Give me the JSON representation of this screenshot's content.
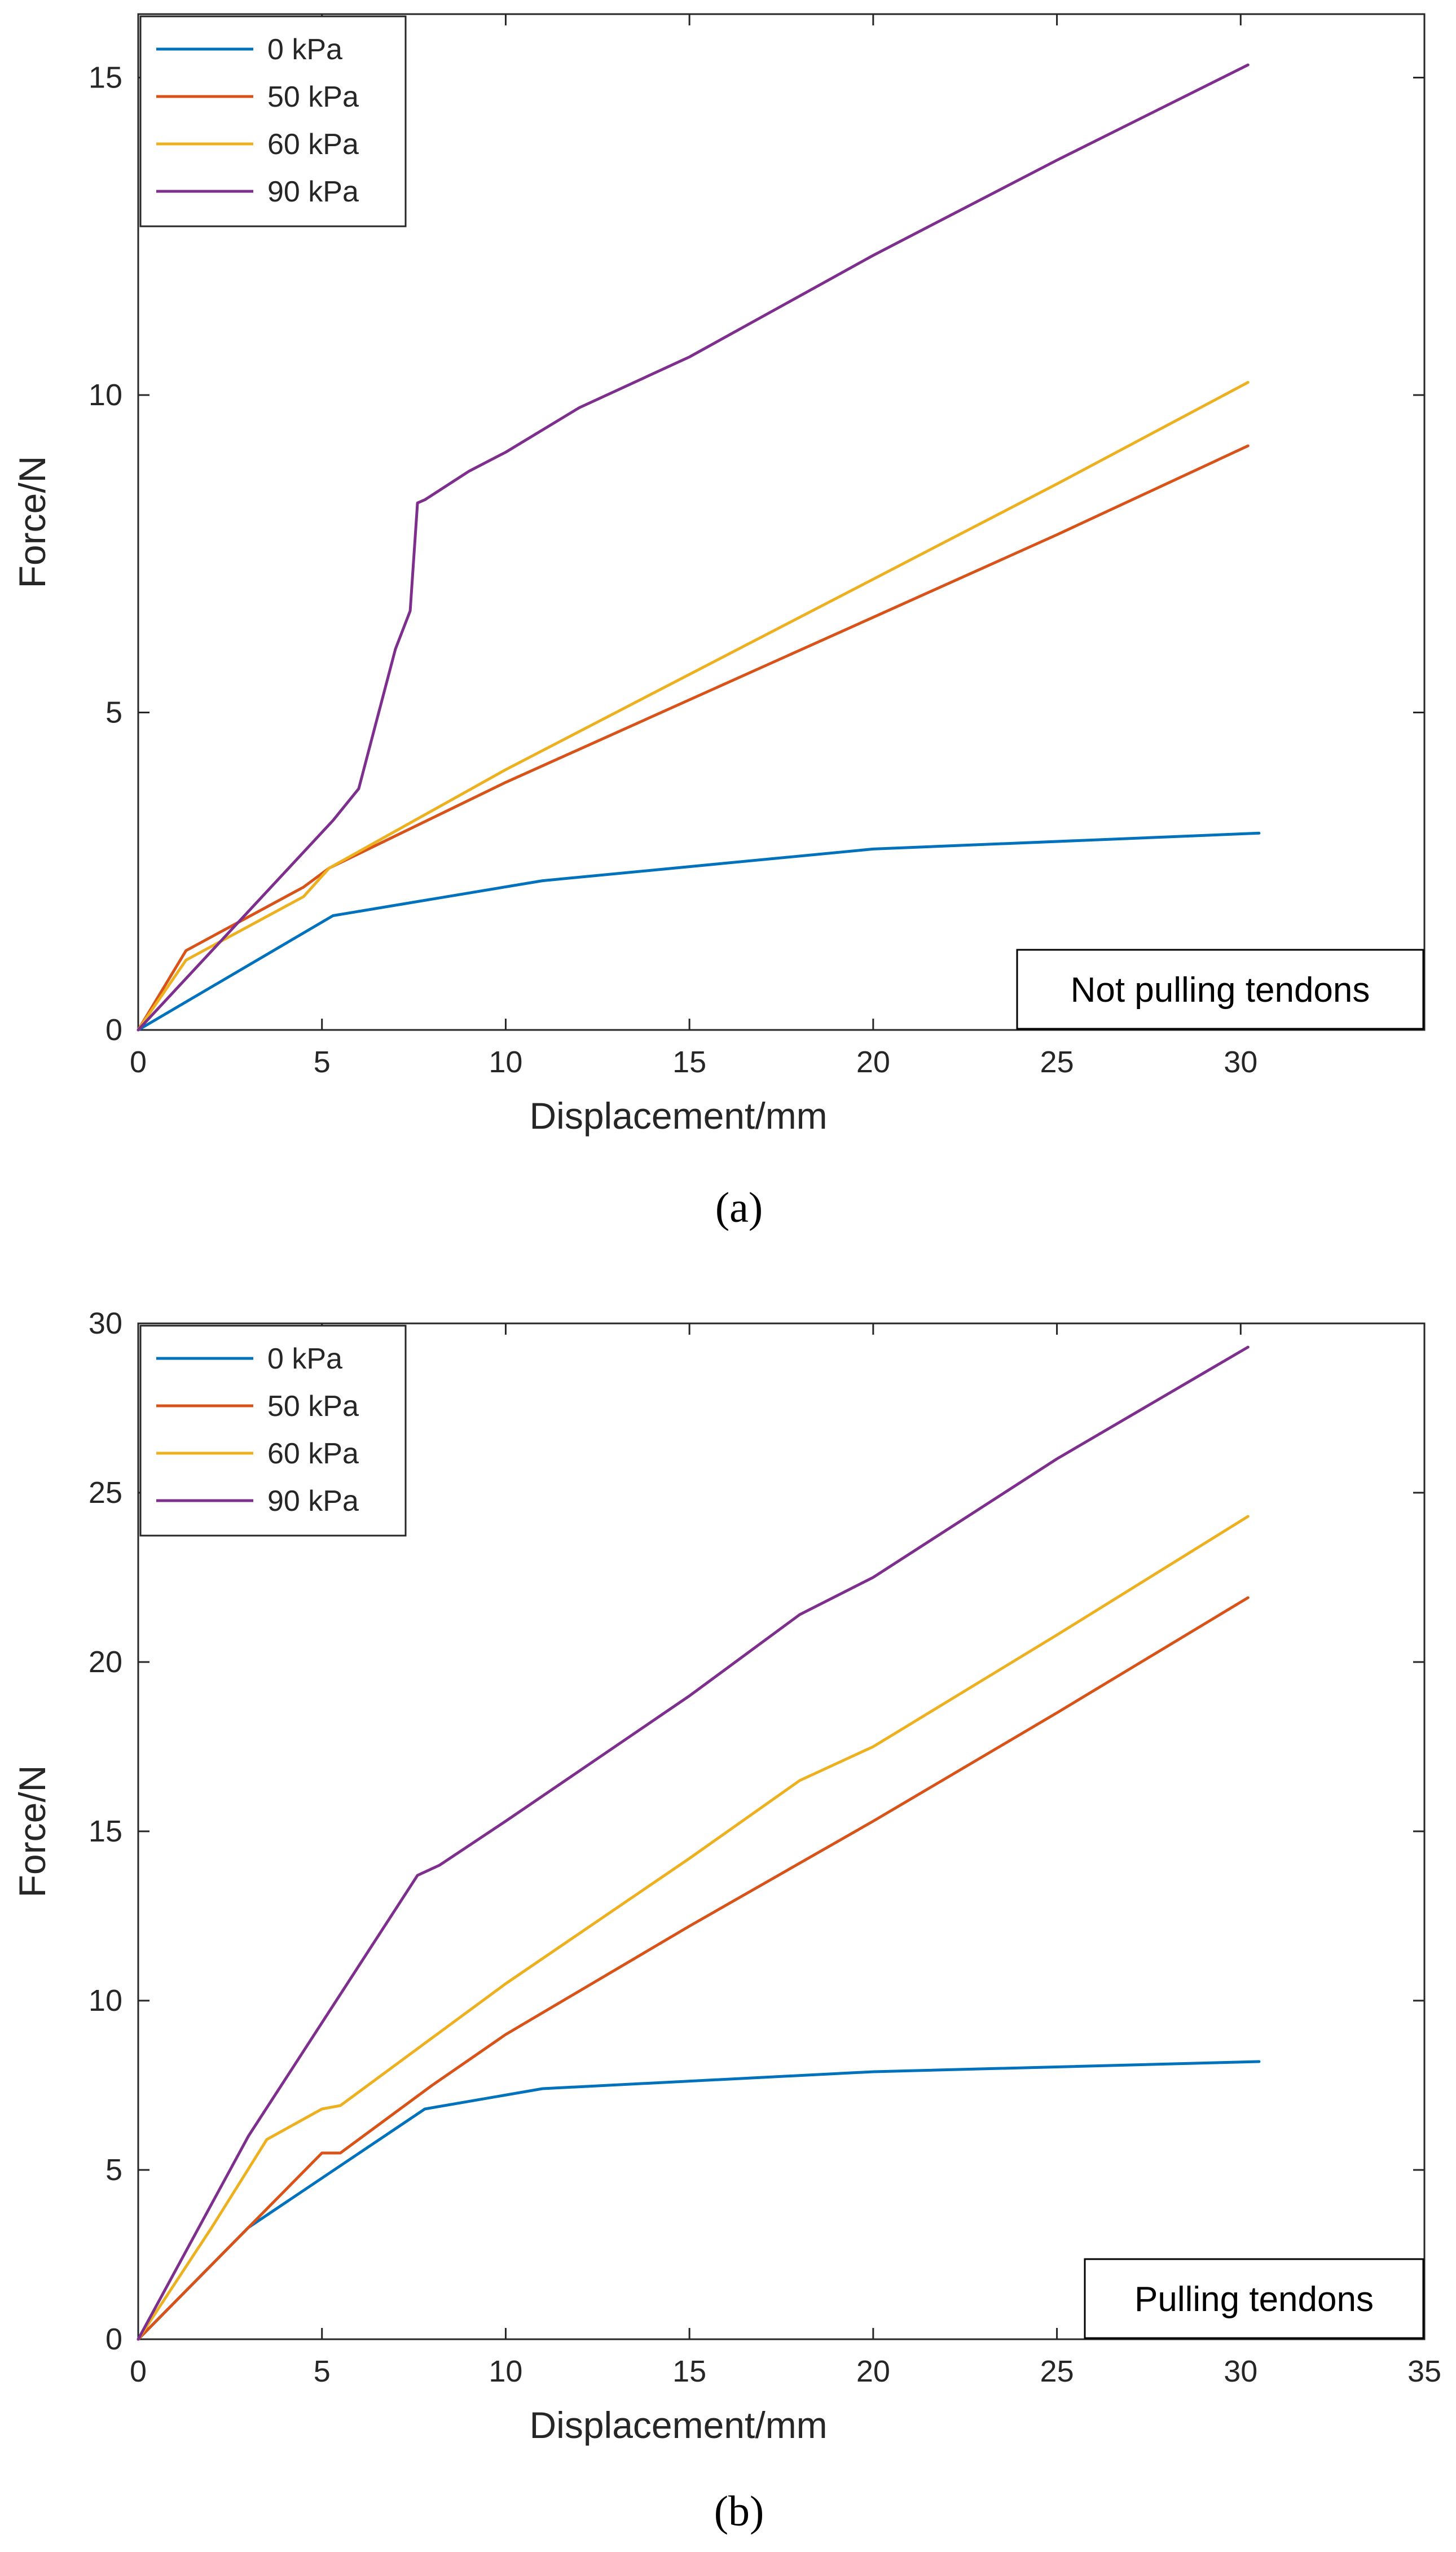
{
  "chart_data": [
    {
      "type": "line",
      "caption": "(a)",
      "xlabel": "Displacement/mm",
      "ylabel": "Force/N",
      "xlim": [
        0,
        35
      ],
      "ylim": [
        0,
        16
      ],
      "xticks": [
        0,
        5,
        10,
        15,
        20,
        25,
        30
      ],
      "yticks": [
        0,
        5,
        10,
        15
      ],
      "grid": false,
      "legend": "top-left",
      "annotation": "Not pulling tendons",
      "series": [
        {
          "name": "0 kPa",
          "color": "#0072BD",
          "x": [
            0,
            5.3,
            11,
            20,
            30.5
          ],
          "y": [
            0,
            1.8,
            2.35,
            2.85,
            3.1
          ]
        },
        {
          "name": "50 kPa",
          "color": "#D95319",
          "x": [
            0,
            1.3,
            4.5,
            5.2,
            10,
            15,
            20,
            25,
            30.2
          ],
          "y": [
            0,
            1.25,
            2.25,
            2.55,
            3.9,
            5.2,
            6.5,
            7.8,
            9.2
          ]
        },
        {
          "name": "60 kPa",
          "color": "#EDB120",
          "x": [
            0,
            1.3,
            4.5,
            5.2,
            10,
            15,
            20,
            25,
            30.2
          ],
          "y": [
            0,
            1.1,
            2.1,
            2.55,
            4.1,
            5.6,
            7.1,
            8.6,
            10.2
          ]
        },
        {
          "name": "90 kPa",
          "color": "#7E2F8E",
          "x": [
            0,
            5.3,
            6,
            6.5,
            7,
            7.4,
            7.6,
            7.8,
            9,
            10,
            12,
            15,
            20,
            25,
            30.2
          ],
          "y": [
            0,
            3.3,
            3.8,
            4.9,
            6.0,
            6.6,
            8.3,
            8.35,
            8.8,
            9.1,
            9.8,
            10.6,
            12.2,
            13.7,
            15.2
          ]
        }
      ]
    },
    {
      "type": "line",
      "caption": "(b)",
      "xlabel": "Displacement/mm",
      "ylabel": "Force/N",
      "xlim": [
        0,
        35
      ],
      "ylim": [
        0,
        30
      ],
      "xticks": [
        0,
        5,
        10,
        15,
        20,
        25,
        30,
        35
      ],
      "yticks": [
        0,
        5,
        10,
        15,
        20,
        25,
        30
      ],
      "grid": false,
      "legend": "top-left",
      "annotation": "Pulling tendons",
      "series": [
        {
          "name": "0 kPa",
          "color": "#0072BD",
          "x": [
            0,
            3,
            7.8,
            11,
            20,
            30.5
          ],
          "y": [
            0,
            3.3,
            6.8,
            7.4,
            7.9,
            8.2
          ]
        },
        {
          "name": "50 kPa",
          "color": "#D95319",
          "x": [
            0,
            3,
            5,
            5.5,
            8,
            10,
            15,
            20,
            25,
            30.2
          ],
          "y": [
            0,
            3.3,
            5.5,
            5.5,
            7.5,
            9.0,
            12.2,
            15.3,
            18.5,
            21.9
          ]
        },
        {
          "name": "60 kPa",
          "color": "#EDB120",
          "x": [
            0,
            2,
            3.5,
            5,
            5.5,
            8,
            10,
            15,
            18,
            20,
            25,
            30.2
          ],
          "y": [
            0,
            3.3,
            5.9,
            6.8,
            6.9,
            8.9,
            10.5,
            14.2,
            16.5,
            17.5,
            20.8,
            24.3
          ]
        },
        {
          "name": "90 kPa",
          "color": "#7E2F8E",
          "x": [
            0,
            3,
            7.6,
            8.2,
            10,
            15,
            18,
            20,
            25,
            30.2
          ],
          "y": [
            0,
            6.0,
            13.7,
            14.0,
            15.3,
            19.0,
            21.4,
            22.5,
            26.0,
            29.3
          ]
        }
      ]
    }
  ]
}
